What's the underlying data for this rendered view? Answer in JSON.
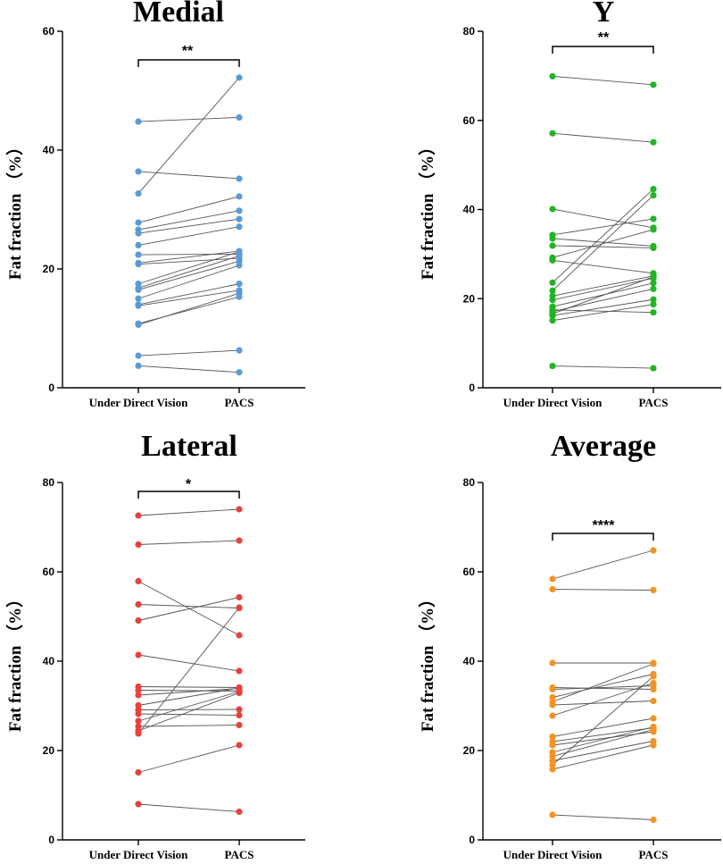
{
  "figure": {
    "background": "#ffffff",
    "line_color": "#555555"
  },
  "chart_data": [
    {
      "type": "scatter",
      "title": "Medial",
      "ylabel": "Fat fraction （%）",
      "xlabel": "",
      "categories": [
        "Under Direct Vision",
        "PACS"
      ],
      "ylim": [
        0,
        60
      ],
      "yticks": [
        0,
        20,
        40,
        60
      ],
      "significance": "**",
      "color": "#5b9bd5",
      "pairs": [
        [
          44.8,
          45.5
        ],
        [
          36.4,
          35.2
        ],
        [
          32.7,
          52.2
        ],
        [
          27.8,
          32.2
        ],
        [
          26.6,
          29.8
        ],
        [
          26.0,
          28.4
        ],
        [
          24.0,
          27.1
        ],
        [
          22.4,
          22.5
        ],
        [
          21.0,
          23.0
        ],
        [
          20.8,
          21.8
        ],
        [
          17.5,
          22.9
        ],
        [
          16.8,
          22.2
        ],
        [
          16.5,
          21.3
        ],
        [
          15.0,
          20.6
        ],
        [
          14.0,
          17.5
        ],
        [
          13.8,
          16.4
        ],
        [
          10.8,
          15.3
        ],
        [
          10.6,
          15.9
        ],
        [
          5.4,
          6.3
        ],
        [
          3.7,
          2.6
        ]
      ]
    },
    {
      "type": "scatter",
      "title": "Y",
      "ylabel": "Fat fraction （%）",
      "xlabel": "",
      "categories": [
        "Under Direct Vision",
        "PACS"
      ],
      "ylim": [
        0,
        80
      ],
      "yticks": [
        0,
        20,
        40,
        60,
        80
      ],
      "significance": "**",
      "color": "#22b422",
      "pairs": [
        [
          69.9,
          68.0
        ],
        [
          57.1,
          55.1
        ],
        [
          40.1,
          35.9
        ],
        [
          34.3,
          37.9
        ],
        [
          33.5,
          31.8
        ],
        [
          31.9,
          31.4
        ],
        [
          29.2,
          35.5
        ],
        [
          28.6,
          25.7
        ],
        [
          23.6,
          44.6
        ],
        [
          21.8,
          43.2
        ],
        [
          20.6,
          25.1
        ],
        [
          19.7,
          24.6
        ],
        [
          18.2,
          23.5
        ],
        [
          17.1,
          22.2
        ],
        [
          16.6,
          24.9
        ],
        [
          16.2,
          19.8
        ],
        [
          15.1,
          18.7
        ],
        [
          17.5,
          16.9
        ],
        [
          4.9,
          4.4
        ]
      ]
    },
    {
      "type": "scatter",
      "title": "Lateral",
      "ylabel": "Fat fraction （%）",
      "xlabel": "",
      "categories": [
        "Under Direct Vision",
        "PACS"
      ],
      "ylim": [
        0,
        80
      ],
      "yticks": [
        0,
        20,
        40,
        60,
        80
      ],
      "significance": "*",
      "color": "#e8413c",
      "pairs": [
        [
          72.6,
          74.0
        ],
        [
          66.1,
          67.0
        ],
        [
          57.9,
          45.8
        ],
        [
          52.7,
          51.9
        ],
        [
          49.1,
          54.3
        ],
        [
          41.4,
          37.8
        ],
        [
          34.3,
          34.1
        ],
        [
          33.5,
          33.3
        ],
        [
          32.4,
          33.9
        ],
        [
          30.1,
          34.0
        ],
        [
          29.1,
          29.2
        ],
        [
          28.2,
          27.9
        ],
        [
          26.6,
          33.2
        ],
        [
          25.4,
          25.7
        ],
        [
          24.4,
          32.9
        ],
        [
          23.8,
          52.0
        ],
        [
          15.1,
          21.2
        ],
        [
          8.0,
          6.3
        ]
      ]
    },
    {
      "type": "scatter",
      "title": "Average",
      "ylabel": "Fat fraction （%）",
      "xlabel": "",
      "categories": [
        "Under Direct Vision",
        "PACS"
      ],
      "ylim": [
        0,
        80
      ],
      "yticks": [
        0,
        20,
        40,
        60,
        80
      ],
      "significance": "****",
      "color": "#f39322",
      "pairs": [
        [
          58.4,
          64.8
        ],
        [
          56.1,
          55.9
        ],
        [
          39.6,
          39.6
        ],
        [
          34.1,
          33.7
        ],
        [
          33.7,
          34.5
        ],
        [
          31.9,
          37.1
        ],
        [
          30.9,
          39.4
        ],
        [
          30.2,
          31.1
        ],
        [
          27.8,
          35.1
        ],
        [
          23.1,
          27.2
        ],
        [
          22.0,
          25.1
        ],
        [
          21.2,
          24.2
        ],
        [
          19.6,
          25.3
        ],
        [
          18.7,
          24.7
        ],
        [
          17.7,
          22.1
        ],
        [
          16.8,
          36.6
        ],
        [
          15.8,
          21.2
        ],
        [
          5.6,
          4.5
        ]
      ]
    }
  ]
}
